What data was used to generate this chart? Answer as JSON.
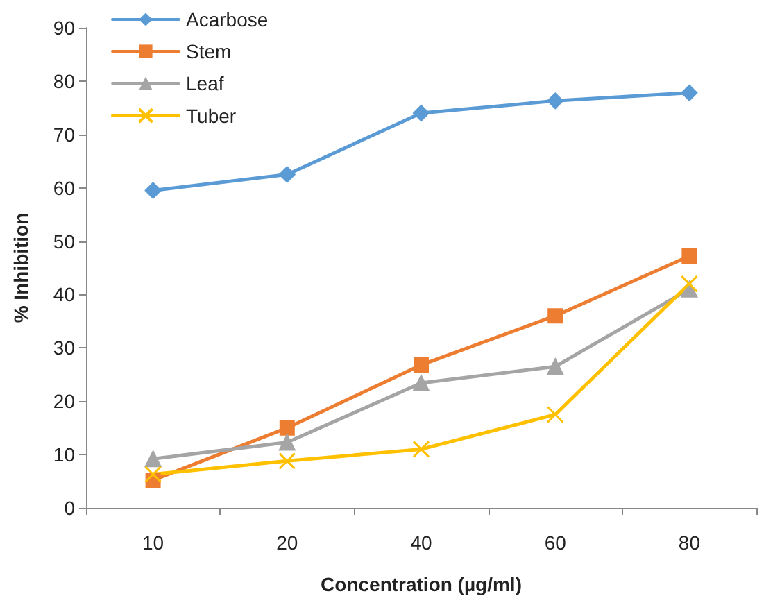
{
  "chart_data": {
    "type": "line",
    "xlabel": "Concentration (µg/ml)",
    "ylabel": "% Inhibition",
    "categories": [
      "10",
      "20",
      "40",
      "60",
      "80"
    ],
    "ylim": [
      0,
      90
    ],
    "yticks": [
      0,
      10,
      20,
      30,
      40,
      50,
      60,
      70,
      80,
      90
    ],
    "grid": false,
    "legend": "top left",
    "line_style": "solid",
    "series": [
      {
        "name": "Acarbose",
        "color": "#5b9bd5",
        "marker": "diamond",
        "values": [
          59.5,
          62.5,
          74,
          76.3,
          77.8
        ]
      },
      {
        "name": "Stem",
        "color": "#ed7d31",
        "marker": "square",
        "values": [
          5.2,
          15,
          26.8,
          36,
          47.2
        ]
      },
      {
        "name": "Leaf",
        "color": "#a5a5a5",
        "marker": "triangle",
        "values": [
          9.2,
          12.3,
          23.4,
          26.5,
          41
        ]
      },
      {
        "name": "Tuber",
        "color": "#ffc000",
        "marker": "cross",
        "values": [
          6.3,
          8.8,
          11,
          17.5,
          42
        ]
      }
    ]
  }
}
